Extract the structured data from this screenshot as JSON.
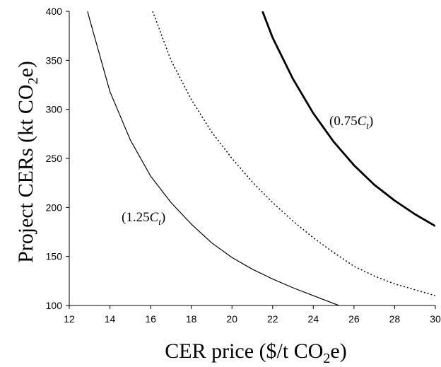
{
  "chart_data": {
    "type": "line",
    "title": "",
    "xlabel": {
      "pre": "CER price ($/t CO",
      "sub": "2",
      "post": "e)"
    },
    "ylabel": {
      "pre": "Project CERs (kt CO",
      "sub": "2",
      "post": "e)"
    },
    "xlim": [
      12,
      30
    ],
    "ylim": [
      100,
      400
    ],
    "xticks": [
      12,
      14,
      16,
      18,
      20,
      22,
      24,
      26,
      28,
      30
    ],
    "yticks": [
      100,
      150,
      200,
      250,
      300,
      350,
      400
    ],
    "grid": false,
    "legend": "none",
    "series": [
      {
        "label": {
          "pre": "(1.25",
          "italic": "C",
          "sub": "t",
          "post": ")"
        },
        "style": "solid-thin",
        "color": "#000000",
        "points": [
          [
            12.9,
            400
          ],
          [
            13,
            392
          ],
          [
            14,
            318
          ],
          [
            15,
            269
          ],
          [
            16,
            232
          ],
          [
            17,
            205
          ],
          [
            18,
            183
          ],
          [
            19,
            164
          ],
          [
            20,
            149
          ],
          [
            21,
            137
          ],
          [
            22,
            127
          ],
          [
            23,
            118
          ],
          [
            24,
            110
          ],
          [
            25,
            102
          ],
          [
            25.8,
            96
          ]
        ]
      },
      {
        "label": null,
        "style": "dotted",
        "color": "#000000",
        "points": [
          [
            16.1,
            400
          ],
          [
            17,
            350
          ],
          [
            18,
            310
          ],
          [
            19,
            277
          ],
          [
            20,
            250
          ],
          [
            21,
            226
          ],
          [
            22,
            205
          ],
          [
            23,
            186
          ],
          [
            24,
            169
          ],
          [
            25,
            154
          ],
          [
            26,
            140
          ],
          [
            27,
            130
          ],
          [
            28,
            122
          ],
          [
            29,
            116
          ],
          [
            30,
            110
          ]
        ]
      },
      {
        "label": {
          "pre": "(0.75",
          "italic": "C",
          "sub": "t",
          "post": ")"
        },
        "style": "solid-thick",
        "color": "#000000",
        "points": [
          [
            21.5,
            400
          ],
          [
            22,
            373
          ],
          [
            23,
            331
          ],
          [
            24,
            296
          ],
          [
            25,
            267
          ],
          [
            26,
            243
          ],
          [
            27,
            223
          ],
          [
            28,
            207
          ],
          [
            29,
            193
          ],
          [
            30,
            181
          ]
        ]
      }
    ]
  }
}
